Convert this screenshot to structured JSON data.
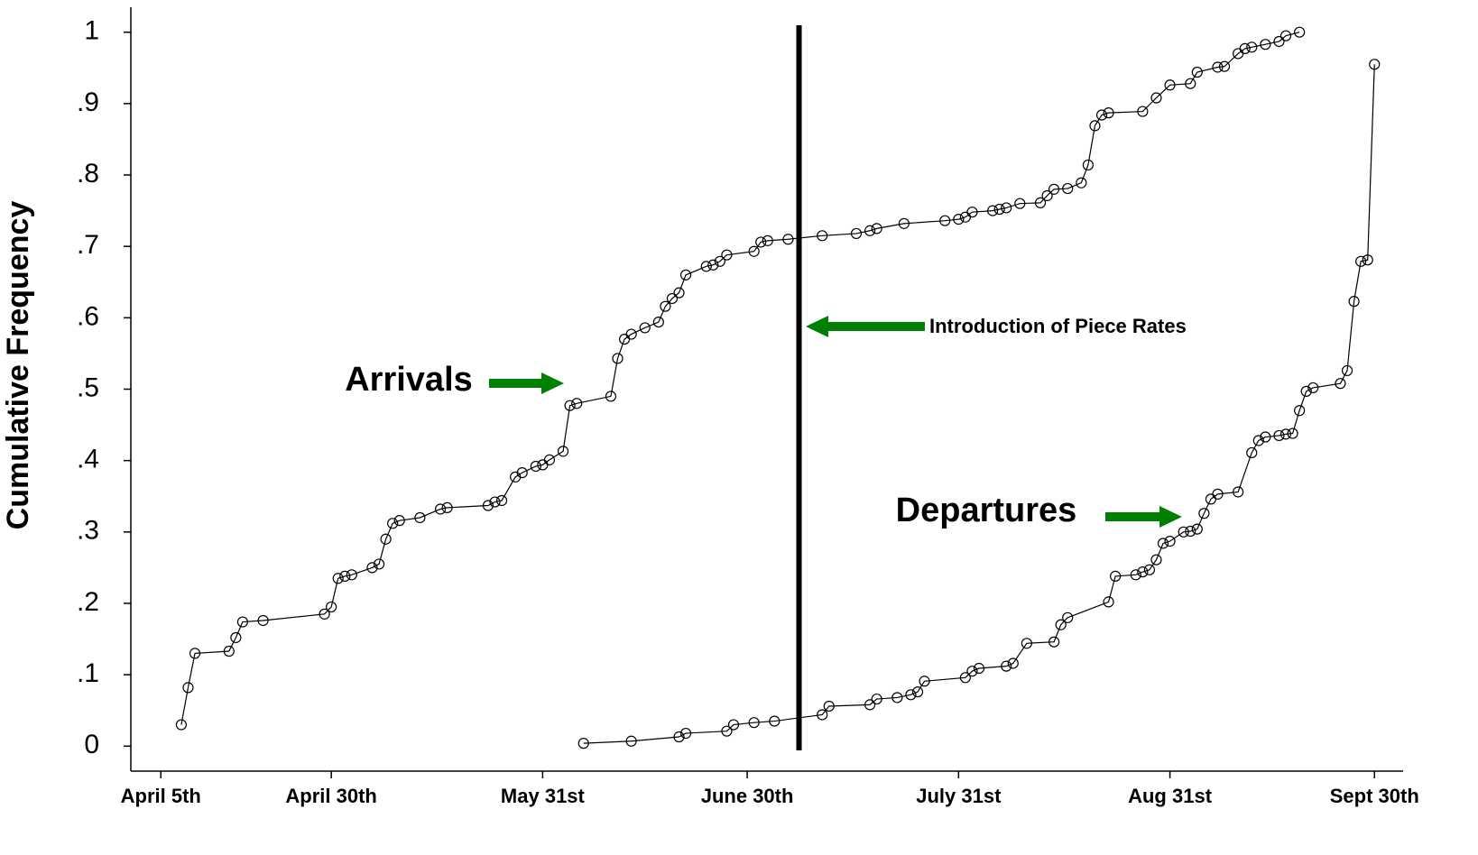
{
  "chart_data": {
    "type": "line",
    "y_label": "Cumulative Frequency",
    "annotation": "Introduction of Piece Rates",
    "vertical_line": 188.6,
    "xlim": [
      90.6,
      277.2
    ],
    "xticks": [
      {
        "value": 95,
        "label": "April 5th"
      },
      {
        "value": 120,
        "label": "April 30th"
      },
      {
        "value": 151,
        "label": "May 31st"
      },
      {
        "value": 181,
        "label": "June 30th"
      },
      {
        "value": 212,
        "label": "July 31st"
      },
      {
        "value": 243,
        "label": "Aug 31st"
      },
      {
        "value": 273,
        "label": "Sept 30th"
      }
    ],
    "ylim": [
      -0.035,
      1.035
    ],
    "yticks": [
      0,
      {
        "value": 0.1,
        "label": ".1"
      },
      {
        "value": 0.2,
        "label": ".2"
      },
      {
        "value": 0.3,
        "label": ".3"
      },
      {
        "value": 0.4,
        "label": ".4"
      },
      {
        "value": 0.5,
        "label": ".5"
      },
      {
        "value": 0.6,
        "label": ".6"
      },
      {
        "value": 0.7,
        "label": ".7"
      },
      {
        "value": 0.8,
        "label": ".8"
      },
      {
        "value": 0.9,
        "label": ".9"
      },
      1
    ],
    "series": [
      {
        "name": "Arrivals",
        "color": "#000000",
        "x": [
          98,
          99,
          100,
          105,
          106,
          107,
          110,
          119,
          120,
          121,
          122,
          123,
          126,
          127,
          128,
          129,
          130,
          133,
          136,
          137,
          143,
          144,
          145,
          147,
          148,
          150,
          151,
          152,
          154,
          155,
          156,
          161,
          162,
          163,
          164,
          166,
          168,
          169,
          170,
          171,
          172,
          175,
          176,
          177,
          178,
          182,
          183,
          184,
          187,
          192,
          197,
          199,
          200,
          204,
          210,
          212,
          213,
          214,
          217,
          218,
          219,
          221,
          224,
          225,
          226,
          228,
          230,
          231,
          232,
          233,
          234,
          239,
          241,
          243,
          246,
          247,
          250,
          251,
          253,
          254,
          255,
          257,
          259,
          260,
          262
        ],
        "values": [
          0.03,
          0.082,
          0.13,
          0.133,
          0.152,
          0.174,
          0.176,
          0.185,
          0.195,
          0.235,
          0.238,
          0.24,
          0.25,
          0.255,
          0.29,
          0.312,
          0.316,
          0.32,
          0.332,
          0.334,
          0.337,
          0.342,
          0.344,
          0.377,
          0.383,
          0.392,
          0.394,
          0.401,
          0.413,
          0.477,
          0.48,
          0.49,
          0.543,
          0.57,
          0.577,
          0.586,
          0.594,
          0.616,
          0.627,
          0.635,
          0.66,
          0.672,
          0.674,
          0.679,
          0.688,
          0.693,
          0.706,
          0.708,
          0.71,
          0.715,
          0.718,
          0.722,
          0.725,
          0.732,
          0.736,
          0.738,
          0.741,
          0.748,
          0.75,
          0.752,
          0.754,
          0.76,
          0.761,
          0.771,
          0.78,
          0.781,
          0.789,
          0.814,
          0.869,
          0.884,
          0.887,
          0.889,
          0.908,
          0.926,
          0.928,
          0.944,
          0.951,
          0.952,
          0.97,
          0.977,
          0.979,
          0.983,
          0.987,
          0.995,
          1.0
        ]
      },
      {
        "name": "Departures",
        "color": "#000000",
        "x": [
          157,
          164,
          171,
          172,
          178,
          179,
          182,
          185,
          192,
          193,
          199,
          200,
          203,
          205,
          206,
          207,
          213,
          214,
          215,
          219,
          220,
          222,
          226,
          227,
          228,
          234,
          235,
          238,
          239,
          240,
          241,
          242,
          243,
          245,
          246,
          247,
          248,
          249,
          250,
          253,
          255,
          256,
          257,
          259,
          260,
          261,
          262,
          263,
          264,
          268,
          269,
          270,
          271,
          272,
          273
        ],
        "values": [
          0.004,
          0.007,
          0.013,
          0.018,
          0.021,
          0.03,
          0.033,
          0.035,
          0.044,
          0.056,
          0.058,
          0.066,
          0.068,
          0.072,
          0.076,
          0.091,
          0.096,
          0.105,
          0.109,
          0.112,
          0.116,
          0.144,
          0.146,
          0.17,
          0.18,
          0.202,
          0.238,
          0.24,
          0.244,
          0.247,
          0.261,
          0.284,
          0.287,
          0.3,
          0.301,
          0.304,
          0.326,
          0.346,
          0.353,
          0.356,
          0.411,
          0.428,
          0.433,
          0.435,
          0.437,
          0.438,
          0.47,
          0.497,
          0.502,
          0.508,
          0.526,
          0.623,
          0.679,
          0.681,
          0.955
        ]
      }
    ]
  }
}
